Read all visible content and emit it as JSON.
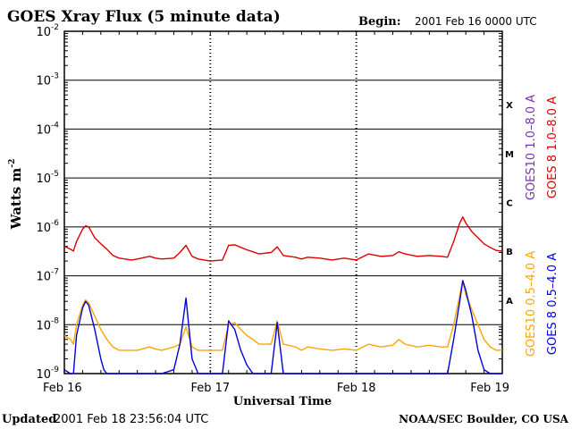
{
  "header": {
    "title": "GOES Xray Flux (5 minute data)",
    "begin_label": "Begin:",
    "begin_value": "2001 Feb 16 0000 UTC"
  },
  "footer": {
    "updated_label": "Updated",
    "updated_value": "2001 Feb 18 23:56:04 UTC",
    "credit": "NOAA/SEC Boulder, CO USA"
  },
  "colors": {
    "goes8_long": "#dd0000",
    "goes10_long": "#7733aa",
    "goes10_short": "#ffa500",
    "goes8_short": "#0000dd",
    "axes": "#000000"
  },
  "chart_data": {
    "type": "line",
    "title": "GOES Xray Flux (5 minute data)",
    "xlabel": "Universal Time",
    "ylabel": "Watts m",
    "ylabel_sup": "-2",
    "yscale": "log",
    "ylim": [
      1e-09,
      0.01
    ],
    "xlim": [
      0,
      72
    ],
    "x_unit": "hours since 2001 Feb 16 0000 UTC",
    "x_ticks": [
      {
        "x": 0,
        "label": "Feb 16"
      },
      {
        "x": 24,
        "label": "Feb 17"
      },
      {
        "x": 48,
        "label": "Feb 18"
      },
      {
        "x": 72,
        "label": "Feb 19"
      }
    ],
    "y_ticks": [
      {
        "exp": -2,
        "base": "10",
        "sup": "-2"
      },
      {
        "exp": -3,
        "base": "10",
        "sup": "-3"
      },
      {
        "exp": -4,
        "base": "10",
        "sup": "-4"
      },
      {
        "exp": -5,
        "base": "10",
        "sup": "-5"
      },
      {
        "exp": -6,
        "base": "10",
        "sup": "-6"
      },
      {
        "exp": -7,
        "base": "10",
        "sup": "-7"
      },
      {
        "exp": -8,
        "base": "10",
        "sup": "-8"
      },
      {
        "exp": -9,
        "base": "10",
        "sup": "-9"
      }
    ],
    "flare_classes": [
      {
        "label": "X",
        "exp": -3.5
      },
      {
        "label": "M",
        "exp": -4.5
      },
      {
        "label": "C",
        "exp": -5.5
      },
      {
        "label": "B",
        "exp": -6.5
      },
      {
        "label": "A",
        "exp": -7.5
      }
    ],
    "grid": true,
    "legend": [
      {
        "label": "GOES10 1.0–8.0 A",
        "color": "#7733aa"
      },
      {
        "label": "GOES 8 1.0–8.0 A",
        "color": "#dd0000"
      },
      {
        "label": "GOES10 0.5–4.0 A",
        "color": "#ffa500"
      },
      {
        "label": "GOES 8 0.5–4.0 A",
        "color": "#0000dd"
      }
    ],
    "legend_placement": "right (vertical text)",
    "series": [
      {
        "name": "GOES 8 1.0–8.0 A",
        "color": "#dd0000",
        "x": [
          0,
          1,
          1.5,
          2,
          3,
          3.5,
          4,
          5,
          6,
          7,
          8,
          9,
          10,
          11,
          12,
          14,
          15,
          16,
          18,
          19,
          20,
          21,
          22,
          23,
          24,
          26,
          27,
          28,
          29,
          30,
          31,
          32,
          34,
          35,
          36,
          38,
          39,
          40,
          42,
          44,
          46,
          48,
          50,
          52,
          54,
          55,
          56,
          58,
          60,
          62,
          63,
          64,
          65,
          65.5,
          66,
          67,
          68,
          69,
          70,
          71,
          72
        ],
        "y": [
          4e-07,
          3.5e-07,
          3.2e-07,
          5e-07,
          9e-07,
          1.05e-06,
          1e-06,
          6e-07,
          4.5e-07,
          3.5e-07,
          2.6e-07,
          2.3e-07,
          2.2e-07,
          2.1e-07,
          2.2e-07,
          2.5e-07,
          2.3e-07,
          2.2e-07,
          2.3e-07,
          3e-07,
          4.2e-07,
          2.5e-07,
          2.2e-07,
          2.1e-07,
          2e-07,
          2.1e-07,
          4.2e-07,
          4.3e-07,
          3.8e-07,
          3.4e-07,
          3.1e-07,
          2.8e-07,
          3e-07,
          3.9e-07,
          2.6e-07,
          2.4e-07,
          2.2e-07,
          2.4e-07,
          2.3e-07,
          2.1e-07,
          2.3e-07,
          2.1e-07,
          2.8e-07,
          2.5e-07,
          2.6e-07,
          3.1e-07,
          2.8e-07,
          2.5e-07,
          2.6e-07,
          2.5e-07,
          2.4e-07,
          5e-07,
          1.2e-06,
          1.6e-06,
          1.2e-06,
          8e-07,
          6e-07,
          4.5e-07,
          3.8e-07,
          3.3e-07,
          3.2e-07
        ]
      },
      {
        "name": "GOES10 0.5–4.0 A",
        "color": "#ffa500",
        "x": [
          0,
          1,
          1.5,
          2,
          3,
          3.5,
          4,
          5,
          6,
          7,
          8,
          9,
          10,
          11,
          12,
          14,
          15,
          16,
          18,
          19,
          20,
          21,
          22,
          23,
          24,
          26,
          27,
          28,
          29,
          30,
          31,
          32,
          34,
          35,
          36,
          38,
          39,
          40,
          42,
          44,
          46,
          48,
          50,
          52,
          54,
          55,
          56,
          58,
          60,
          62,
          63,
          64,
          65,
          65.5,
          66,
          67,
          68,
          69,
          70,
          71,
          72
        ],
        "y": [
          6e-09,
          5e-09,
          4e-09,
          1e-08,
          2.5e-08,
          3.2e-08,
          2.8e-08,
          1.5e-08,
          8e-09,
          5e-09,
          3.5e-09,
          3e-09,
          3e-09,
          3e-09,
          3e-09,
          3.5e-09,
          3.2e-09,
          3e-09,
          3.5e-09,
          4e-09,
          9e-09,
          3.5e-09,
          3e-09,
          3e-09,
          3e-09,
          3e-09,
          1e-08,
          1.1e-08,
          8e-09,
          6e-09,
          5e-09,
          4e-09,
          4e-09,
          1.2e-08,
          4e-09,
          3.5e-09,
          3e-09,
          3.5e-09,
          3.2e-09,
          3e-09,
          3.2e-09,
          3e-09,
          4e-09,
          3.5e-09,
          3.8e-09,
          5e-09,
          4e-09,
          3.5e-09,
          3.8e-09,
          3.5e-09,
          3.5e-09,
          1e-08,
          4e-08,
          8e-08,
          4e-08,
          2e-08,
          1e-08,
          5e-09,
          3.5e-09,
          3e-09,
          3e-09
        ]
      },
      {
        "name": "GOES 8 0.5–4.0 A",
        "color": "#0000dd",
        "x": [
          0,
          1,
          1.5,
          2,
          3,
          3.5,
          4,
          5,
          6,
          6.5,
          7,
          8,
          10,
          12,
          14,
          15,
          16,
          18,
          19,
          20,
          21,
          22,
          24,
          26,
          27,
          28,
          29,
          30,
          31,
          32,
          34,
          35,
          36,
          38,
          40,
          42,
          44,
          46,
          48,
          50,
          52,
          54,
          56,
          58,
          60,
          62,
          63,
          64,
          65,
          65.5,
          66,
          67,
          68,
          69,
          70,
          71,
          72
        ],
        "y": [
          1.2e-09,
          1e-09,
          1e-09,
          6e-09,
          2.2e-08,
          3e-08,
          2.5e-08,
          8e-09,
          2e-09,
          1.2e-09,
          1e-09,
          1e-09,
          1e-09,
          1e-09,
          1e-09,
          1e-09,
          1e-09,
          1.2e-09,
          4e-09,
          3.5e-08,
          2e-09,
          1e-09,
          1e-09,
          1e-09,
          1.2e-08,
          8e-09,
          3e-09,
          1.5e-09,
          1e-09,
          1e-09,
          1e-09,
          1.1e-08,
          1e-09,
          1e-09,
          1e-09,
          1e-09,
          1e-09,
          1e-09,
          1e-09,
          1e-09,
          1e-09,
          1e-09,
          1e-09,
          1e-09,
          1e-09,
          1e-09,
          1e-09,
          5e-09,
          3e-08,
          8e-08,
          5e-08,
          1.5e-08,
          3e-09,
          1.2e-09,
          1e-09,
          1e-09,
          1e-09
        ]
      }
    ]
  }
}
